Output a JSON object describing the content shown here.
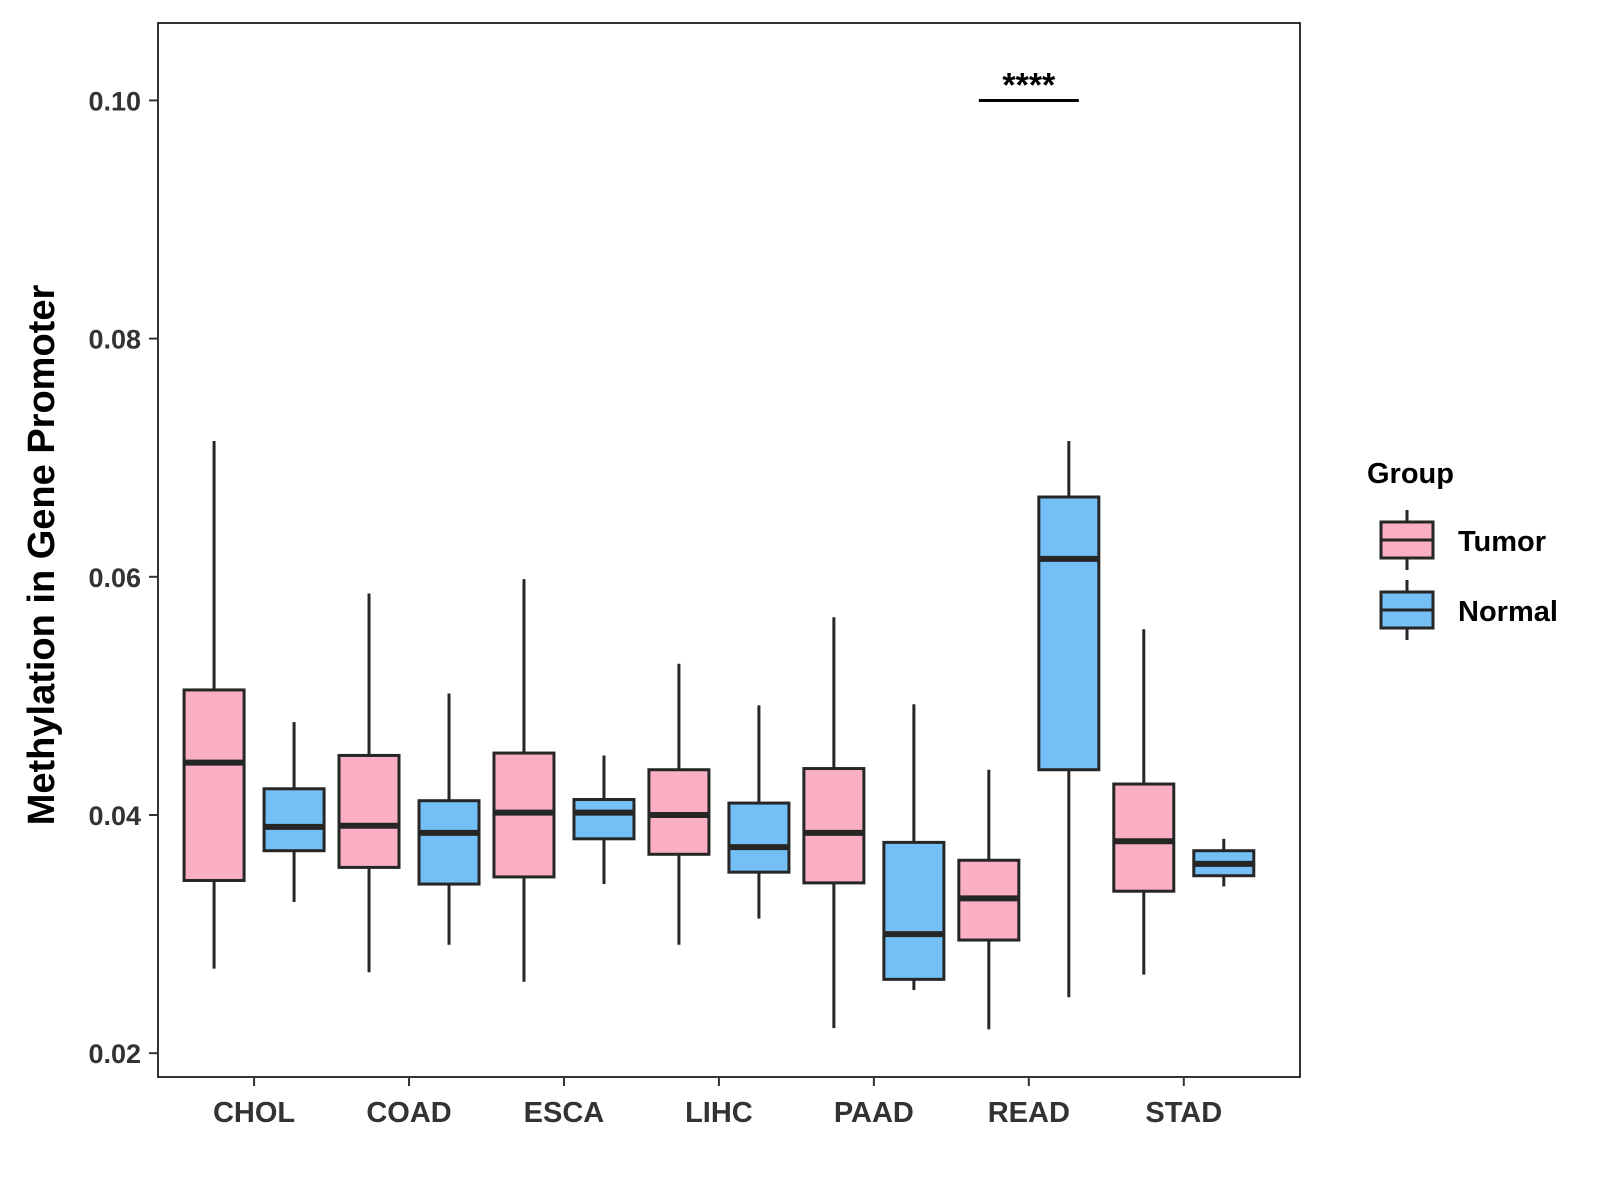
{
  "chart_data": {
    "type": "boxplot",
    "title": "",
    "xlabel": "",
    "ylabel": "Methylation in Gene Promoter",
    "ylim": [
      0.018,
      0.1065
    ],
    "yticks": [
      0.02,
      0.04,
      0.06,
      0.08,
      0.1
    ],
    "ytick_labels": [
      "0.02",
      "0.04",
      "0.06",
      "0.08",
      "0.10"
    ],
    "grid": false,
    "categories": [
      "CHOL",
      "COAD",
      "ESCA",
      "LIHC",
      "PAAD",
      "READ",
      "STAD"
    ],
    "legend": {
      "title": "Group",
      "position": "right",
      "items": [
        {
          "label": "Tumor",
          "color": "#FAB0C2"
        },
        {
          "label": "Normal",
          "color": "#75BFF7"
        }
      ]
    },
    "series": [
      {
        "name": "Tumor",
        "color": "#FAB0C2",
        "boxes": [
          {
            "min": 0.0271,
            "q1": 0.0345,
            "median": 0.0444,
            "q3": 0.0505,
            "max": 0.0714
          },
          {
            "min": 0.0268,
            "q1": 0.0356,
            "median": 0.0391,
            "q3": 0.045,
            "max": 0.0586
          },
          {
            "min": 0.026,
            "q1": 0.0348,
            "median": 0.0402,
            "q3": 0.0452,
            "max": 0.0598
          },
          {
            "min": 0.0291,
            "q1": 0.0367,
            "median": 0.04,
            "q3": 0.0438,
            "max": 0.0527
          },
          {
            "min": 0.0221,
            "q1": 0.0343,
            "median": 0.0385,
            "q3": 0.0439,
            "max": 0.0566
          },
          {
            "min": 0.022,
            "q1": 0.0295,
            "median": 0.033,
            "q3": 0.0362,
            "max": 0.0438
          },
          {
            "min": 0.0266,
            "q1": 0.0336,
            "median": 0.0378,
            "q3": 0.0426,
            "max": 0.0556
          }
        ]
      },
      {
        "name": "Normal",
        "color": "#75BFF7",
        "boxes": [
          {
            "min": 0.0327,
            "q1": 0.037,
            "median": 0.039,
            "q3": 0.0422,
            "max": 0.0478
          },
          {
            "min": 0.0291,
            "q1": 0.0342,
            "median": 0.0385,
            "q3": 0.0412,
            "max": 0.0502
          },
          {
            "min": 0.0342,
            "q1": 0.038,
            "median": 0.0402,
            "q3": 0.0413,
            "max": 0.045
          },
          {
            "min": 0.0313,
            "q1": 0.0352,
            "median": 0.0373,
            "q3": 0.041,
            "max": 0.0492
          },
          {
            "min": 0.0253,
            "q1": 0.0262,
            "median": 0.03,
            "q3": 0.0377,
            "max": 0.0493
          },
          {
            "min": 0.0247,
            "q1": 0.0438,
            "median": 0.0615,
            "q3": 0.0667,
            "max": 0.0714
          },
          {
            "min": 0.034,
            "q1": 0.0349,
            "median": 0.0359,
            "q3": 0.037,
            "max": 0.038
          }
        ]
      }
    ],
    "annotations": [
      {
        "text": "****",
        "category": "READ",
        "y": 0.101
      }
    ]
  }
}
